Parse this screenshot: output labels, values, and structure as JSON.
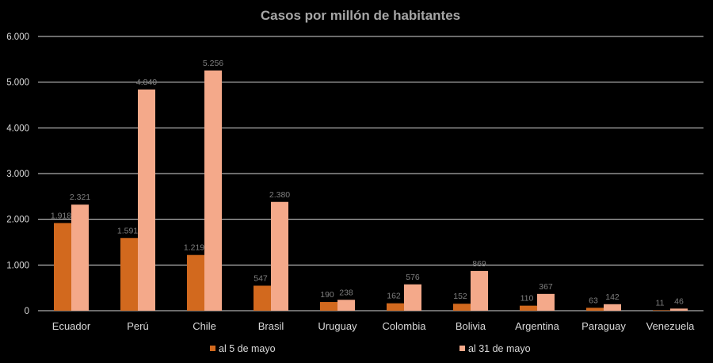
{
  "chart_data": {
    "type": "bar",
    "title": "Casos por millón de habitantes",
    "xlabel": "",
    "ylabel": "",
    "ylim": [
      0,
      6000
    ],
    "yticks": [
      0,
      1000,
      2000,
      3000,
      4000,
      5000,
      6000
    ],
    "ytick_labels": [
      "0",
      "1.000",
      "2.000",
      "3.000",
      "4.000",
      "5.000",
      "6.000"
    ],
    "grid": true,
    "legend_position": "bottom",
    "categories": [
      "Ecuador",
      "Perú",
      "Chile",
      "Brasil",
      "Uruguay",
      "Colombia",
      "Bolivia",
      "Argentina",
      "Paraguay",
      "Venezuela"
    ],
    "series": [
      {
        "name": "al 5 de mayo",
        "color": "#d2691e",
        "values": [
          1918,
          1591,
          1219,
          547,
          190,
          162,
          152,
          110,
          63,
          11
        ],
        "labels": [
          "1.918",
          "1.591",
          "1.219",
          "547",
          "190",
          "162",
          "152",
          "110",
          "63",
          "11"
        ]
      },
      {
        "name": "al 31 de mayo",
        "color": "#f4a98a",
        "values": [
          2321,
          4840,
          5256,
          2380,
          238,
          576,
          869,
          367,
          142,
          46
        ],
        "labels": [
          "2.321",
          "4.840",
          "5.256",
          "2.380",
          "238",
          "576",
          "869",
          "367",
          "142",
          "46"
        ]
      }
    ]
  }
}
